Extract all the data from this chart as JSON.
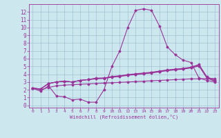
{
  "x": [
    0,
    1,
    2,
    3,
    4,
    5,
    6,
    7,
    8,
    9,
    10,
    11,
    12,
    13,
    14,
    15,
    16,
    17,
    18,
    19,
    20,
    21,
    22,
    23
  ],
  "line_main": [
    2.2,
    1.8,
    2.5,
    1.2,
    1.1,
    0.7,
    0.8,
    0.4,
    0.4,
    2.0,
    5.0,
    7.0,
    10.0,
    12.2,
    12.4,
    12.2,
    10.2,
    7.5,
    6.5,
    5.8,
    5.5,
    3.5,
    3.2,
    3.0
  ],
  "line_upper": [
    2.2,
    2.1,
    2.8,
    3.0,
    3.1,
    3.0,
    3.2,
    3.3,
    3.5,
    3.5,
    3.7,
    3.8,
    3.95,
    4.05,
    4.15,
    4.25,
    4.4,
    4.55,
    4.65,
    4.75,
    4.9,
    5.25,
    3.65,
    3.25
  ],
  "line_mid": [
    2.2,
    2.1,
    2.8,
    3.0,
    3.1,
    3.0,
    3.2,
    3.3,
    3.45,
    3.5,
    3.65,
    3.75,
    3.9,
    4.0,
    4.1,
    4.2,
    4.35,
    4.5,
    4.6,
    4.7,
    4.85,
    5.15,
    3.55,
    3.15
  ],
  "line_lower": [
    2.2,
    2.1,
    2.8,
    3.0,
    3.1,
    3.0,
    3.2,
    3.3,
    3.4,
    3.45,
    3.6,
    3.7,
    3.85,
    3.95,
    4.05,
    4.15,
    4.3,
    4.45,
    4.55,
    4.65,
    4.8,
    5.05,
    3.5,
    3.1
  ],
  "line_bottom": [
    2.2,
    2.0,
    2.3,
    2.5,
    2.6,
    2.65,
    2.7,
    2.75,
    2.8,
    2.85,
    2.9,
    2.95,
    3.0,
    3.05,
    3.1,
    3.15,
    3.2,
    3.25,
    3.3,
    3.35,
    3.4,
    3.4,
    3.45,
    3.45
  ],
  "color": "#993399",
  "bg_color": "#cce8ee",
  "grid_color": "#99bbcc",
  "xlabel": "Windchill (Refroidissement éolien,°C)",
  "xlim": [
    -0.5,
    23.5
  ],
  "ylim": [
    -0.3,
    13.0
  ],
  "yticks": [
    0,
    1,
    2,
    3,
    4,
    5,
    6,
    7,
    8,
    9,
    10,
    11,
    12
  ],
  "xticks": [
    0,
    1,
    2,
    3,
    4,
    5,
    6,
    7,
    8,
    9,
    10,
    11,
    12,
    13,
    14,
    15,
    16,
    17,
    18,
    19,
    20,
    21,
    22,
    23
  ]
}
